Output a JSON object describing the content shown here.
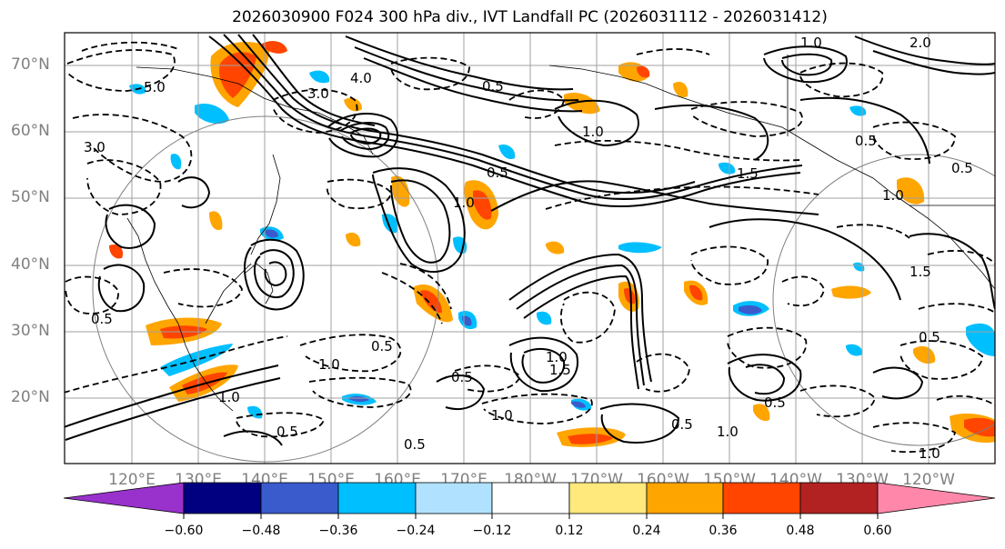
{
  "title": "2026030900 F024 300 hPa div., IVT Landfall PC (2026031112 - 2026031412)",
  "latitude_labels": [
    "70°N",
    "60°N",
    "50°N",
    "40°N",
    "30°N",
    "20°N"
  ],
  "longitude_labels": [
    "120°E",
    "130°E",
    "140°E",
    "150°E",
    "160°E",
    "170°E",
    "180°W",
    "170°W",
    "160°W",
    "150°W",
    "140°W",
    "130°W",
    "120°W"
  ],
  "colorbar": {
    "tick_labels": [
      "−0.60",
      "−0.48",
      "−0.36",
      "−0.24",
      "−0.12",
      "0.12",
      "0.24",
      "0.36",
      "0.48",
      "0.60"
    ],
    "colors": [
      "#9932cc",
      "#000080",
      "#3a5bcb",
      "#00bfff",
      "#b0e2ff",
      "#ffffff",
      "#ffe87c",
      "#ffa500",
      "#ff4500",
      "#b22222",
      "#ff88aa"
    ]
  },
  "contour_labels": [
    "5.0",
    "3.0",
    "4.0",
    "3.0",
    "0.5",
    "1.0",
    "2.0",
    "1.0",
    "1.5",
    "0.5",
    "1.0",
    "0.5",
    "1.0",
    "1.5",
    "1.0",
    "0.5",
    "1.0",
    "0.5",
    "0.5",
    "1.0",
    "1.0",
    "0.5",
    "1.0",
    "0.5",
    "1.5",
    "1.0",
    "0.5",
    "0.5",
    "0.5",
    "0.5"
  ]
}
